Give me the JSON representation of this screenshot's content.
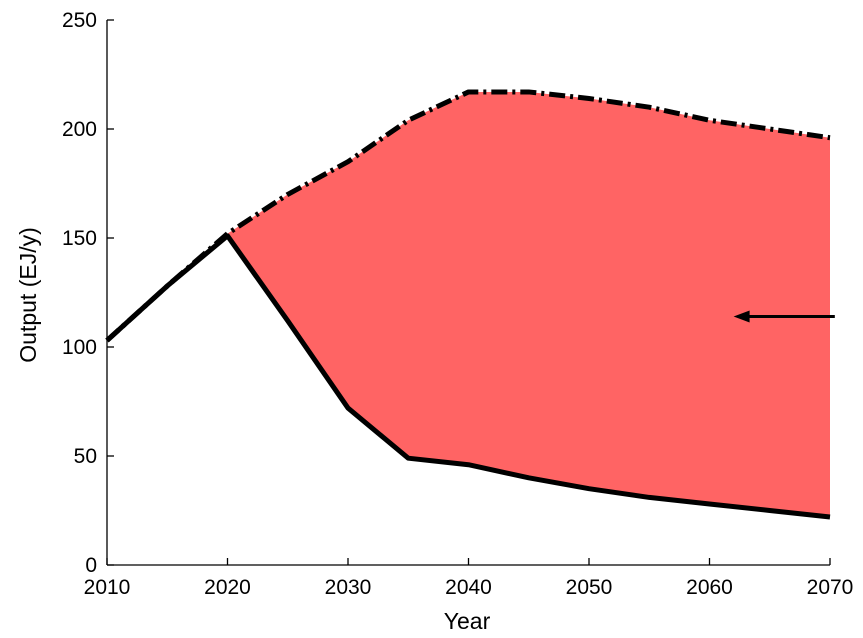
{
  "chart_data": {
    "type": "area",
    "xlabel": "Year",
    "ylabel": "Output (EJ/y)",
    "xlim": [
      2010,
      2070
    ],
    "ylim": [
      0,
      250
    ],
    "xticks": [
      2010,
      2020,
      2030,
      2040,
      2050,
      2060,
      2070
    ],
    "yticks": [
      0,
      50,
      100,
      150,
      200,
      250
    ],
    "grid": false,
    "legend": "none",
    "fill_color": "#ff6464",
    "series": [
      {
        "line_style": "dash-dot",
        "color": "#000000",
        "x": [
          2010,
          2015,
          2020,
          2025,
          2030,
          2035,
          2040,
          2045,
          2050,
          2055,
          2060,
          2065,
          2070
        ],
        "y": [
          103,
          128,
          152,
          170,
          185,
          204,
          217,
          217,
          214,
          210,
          204,
          200,
          196
        ]
      },
      {
        "line_style": "solid",
        "color": "#000000",
        "x": [
          2010,
          2015,
          2020,
          2025,
          2030,
          2035,
          2040,
          2045,
          2050,
          2055,
          2060,
          2065,
          2070
        ],
        "y": [
          103,
          128,
          151,
          112,
          72,
          49,
          46,
          40,
          35,
          31,
          28,
          25,
          22
        ]
      }
    ],
    "annotations": [
      {
        "type": "arrow",
        "direction": "left",
        "color": "#000000",
        "x_start": 2070.4,
        "x_end": 2062,
        "y": 114
      }
    ]
  }
}
